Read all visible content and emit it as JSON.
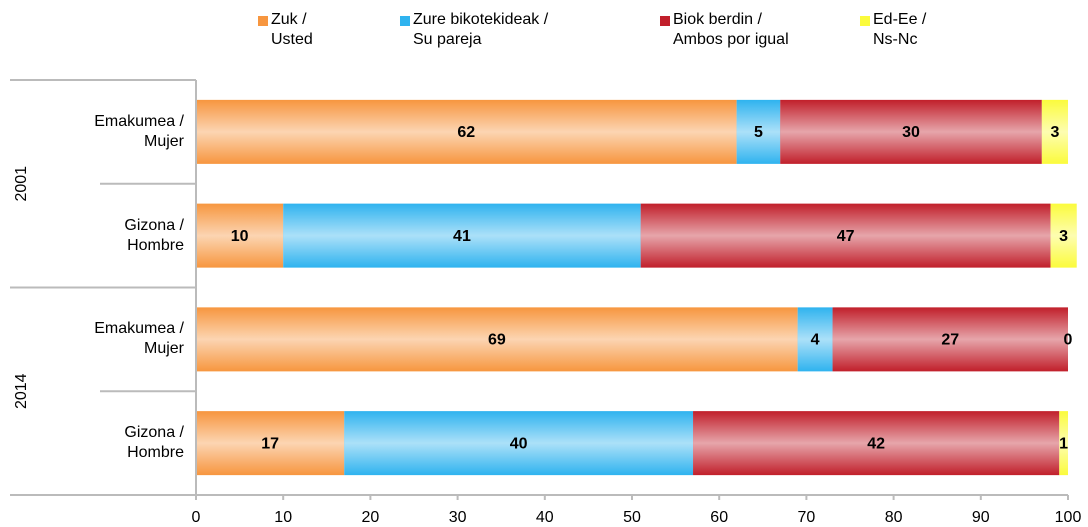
{
  "chart_data": {
    "type": "stacked-barh",
    "groups": [
      "2001",
      "2014"
    ],
    "categories": [
      "Emakumea /\nMujer",
      "Gizona /\nHombre",
      "Emakumea /\nMujer",
      "Gizona /\nHombre"
    ],
    "series": [
      {
        "name": "Zuk /\nUsted",
        "color": "#f7963f",
        "values": [
          62,
          10,
          69,
          17
        ]
      },
      {
        "name": "Zure bikotekideak /\nSu pareja",
        "color": "#2fb3ef",
        "values": [
          5,
          41,
          4,
          40
        ]
      },
      {
        "name": "Biok berdin /\nAmbos por igual",
        "color": "#c11f2b",
        "values": [
          30,
          47,
          27,
          42
        ]
      },
      {
        "name": "Ed-Ee /\nNs-Nc",
        "color": "#fbfb3c",
        "values": [
          3,
          3,
          0,
          1
        ]
      }
    ],
    "xlim": [
      0,
      100
    ],
    "xticks": [
      0,
      10,
      20,
      30,
      40,
      50,
      60,
      70,
      80,
      90,
      100
    ],
    "legend": "top"
  }
}
